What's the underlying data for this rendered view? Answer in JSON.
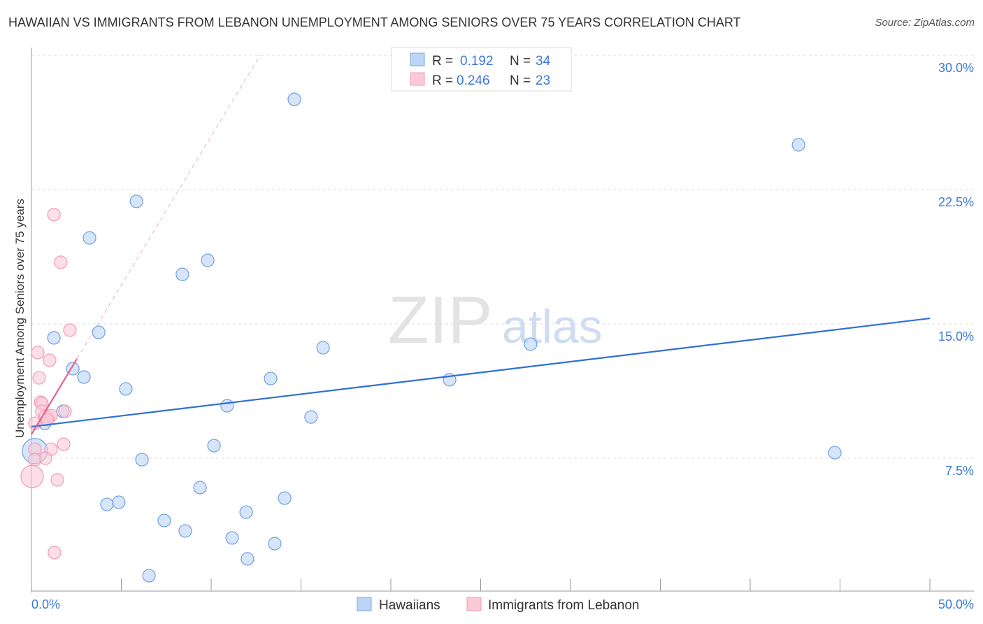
{
  "title": "HAWAIIAN VS IMMIGRANTS FROM LEBANON UNEMPLOYMENT AMONG SENIORS OVER 75 YEARS CORRELATION CHART",
  "source": "Source: ZipAtlas.com",
  "watermark": {
    "zip": "ZIP",
    "atlas": "atlas"
  },
  "chart_data": {
    "type": "scatter",
    "xlabel": "",
    "ylabel": "Unemployment Among Seniors over 75 years",
    "xlim": [
      0,
      50
    ],
    "ylim": [
      0,
      30
    ],
    "x_tick_labels": [
      "0.0%",
      "50.0%"
    ],
    "y_ticks": [
      7.5,
      15,
      22.5,
      30
    ],
    "y_tick_labels": [
      "7.5%",
      "15.0%",
      "22.5%",
      "30.0%"
    ],
    "grid": true,
    "legend_placement": "top-center",
    "colors": {
      "Hawaiians": "#6f9fe0",
      "Immigrants from Lebanon": "#f19ab3",
      "blue_line": "#2f6fd6",
      "pink_line": "#e8608a"
    },
    "stats": [
      {
        "r_label": "R = ",
        "r": "0.192",
        "n_label": "N = ",
        "n": "34"
      },
      {
        "r_label": "R = ",
        "r": "0.246",
        "n_label": "N = ",
        "n": "23"
      }
    ],
    "series": [
      {
        "name": "Hawaiians",
        "points": [
          [
            14.63,
            27.54
          ],
          [
            42.69,
            25.0
          ],
          [
            5.84,
            21.84
          ],
          [
            3.23,
            19.8
          ],
          [
            9.81,
            18.55
          ],
          [
            8.4,
            17.77
          ],
          [
            3.74,
            14.53
          ],
          [
            1.25,
            14.22
          ],
          [
            16.23,
            13.67
          ],
          [
            27.78,
            13.87
          ],
          [
            2.3,
            12.5
          ],
          [
            2.92,
            12.03
          ],
          [
            13.31,
            11.95
          ],
          [
            23.27,
            11.88
          ],
          [
            5.25,
            11.37
          ],
          [
            10.89,
            10.43
          ],
          [
            1.75,
            10.12
          ],
          [
            15.56,
            9.8
          ],
          [
            0.74,
            9.45
          ],
          [
            10.16,
            8.2
          ],
          [
            0.19,
            7.9
          ],
          [
            6.15,
            7.42
          ],
          [
            44.71,
            7.81
          ],
          [
            9.38,
            5.86
          ],
          [
            14.09,
            5.27
          ],
          [
            4.2,
            4.92
          ],
          [
            4.86,
            5.04
          ],
          [
            11.95,
            4.49
          ],
          [
            7.39,
            4.02
          ],
          [
            8.56,
            3.44
          ],
          [
            11.17,
            3.05
          ],
          [
            13.54,
            2.73
          ],
          [
            12.02,
            1.88
          ],
          [
            6.54,
            0.94
          ]
        ],
        "trend": [
          [
            0,
            9.26
          ],
          [
            50,
            15.31
          ]
        ]
      },
      {
        "name": "Immigrants from Lebanon",
        "points": [
          [
            1.25,
            21.1
          ],
          [
            1.63,
            18.44
          ],
          [
            2.14,
            14.65
          ],
          [
            0.35,
            13.4
          ],
          [
            1.01,
            12.97
          ],
          [
            0.43,
            11.99
          ],
          [
            0.51,
            10.63
          ],
          [
            0.58,
            10.55
          ],
          [
            0.58,
            10.12
          ],
          [
            0.78,
            9.84
          ],
          [
            0.97,
            9.8
          ],
          [
            1.09,
            9.88
          ],
          [
            0.89,
            9.65
          ],
          [
            1.87,
            10.12
          ],
          [
            0.19,
            9.45
          ],
          [
            1.79,
            8.28
          ],
          [
            1.09,
            8.0
          ],
          [
            0.78,
            7.5
          ],
          [
            0.19,
            8.0
          ],
          [
            0.19,
            7.42
          ],
          [
            0.04,
            6.48
          ],
          [
            1.44,
            6.29
          ],
          [
            1.28,
            2.23
          ]
        ],
        "trend": [
          [
            0,
            8.83
          ],
          [
            2.53,
            13.05
          ]
        ],
        "trend_extended": [
          [
            2.53,
            13.05
          ],
          [
            12.72,
            30
          ]
        ]
      }
    ]
  }
}
